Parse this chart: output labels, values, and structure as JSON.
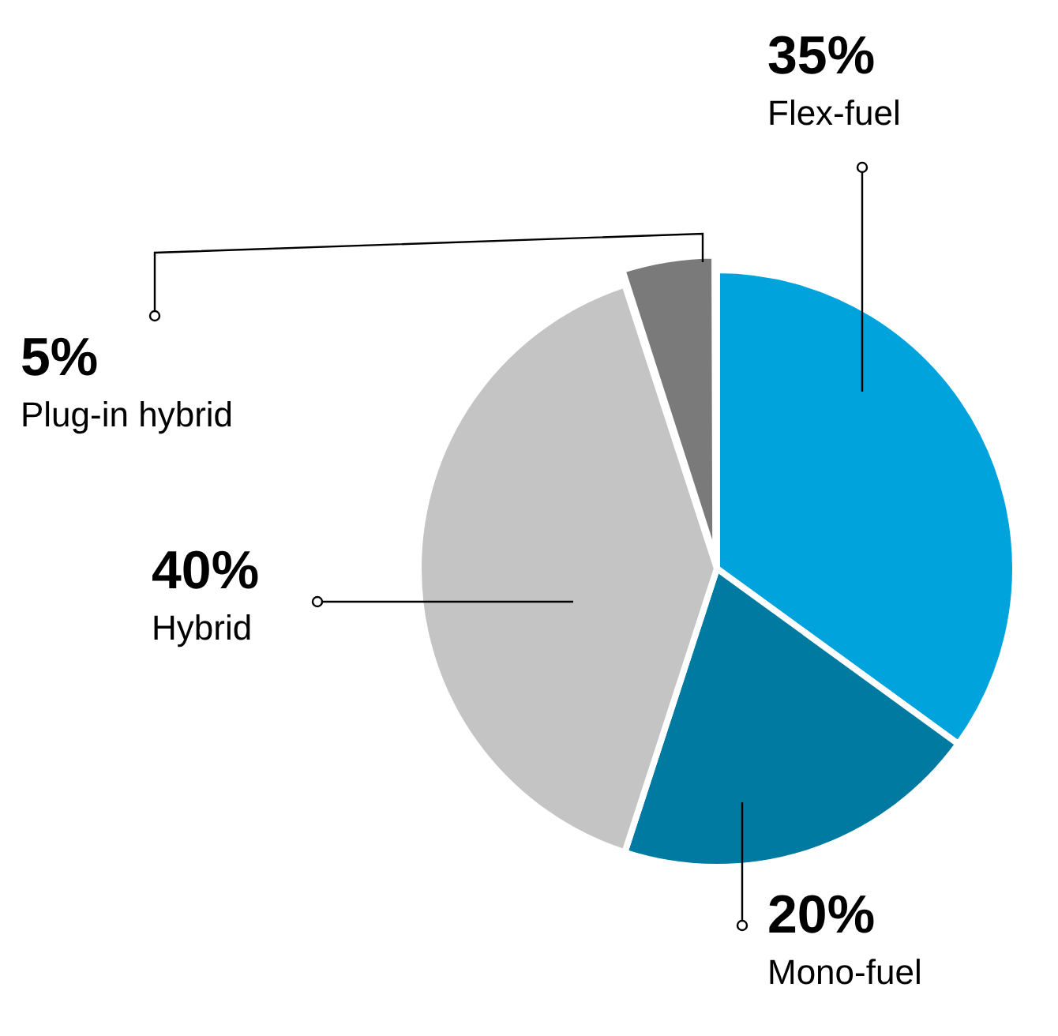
{
  "chart_data": {
    "type": "pie",
    "categories": [
      "Flex-fuel",
      "Mono-fuel",
      "Hybrid",
      "Plug-in hybrid"
    ],
    "values": [
      35,
      20,
      40,
      5
    ],
    "value_labels": [
      "35%",
      "20%",
      "40%",
      "5%"
    ],
    "colors": [
      "#00a3dc",
      "#007aa0",
      "#c4c4c4",
      "#7a7a7a"
    ],
    "legend": false
  }
}
